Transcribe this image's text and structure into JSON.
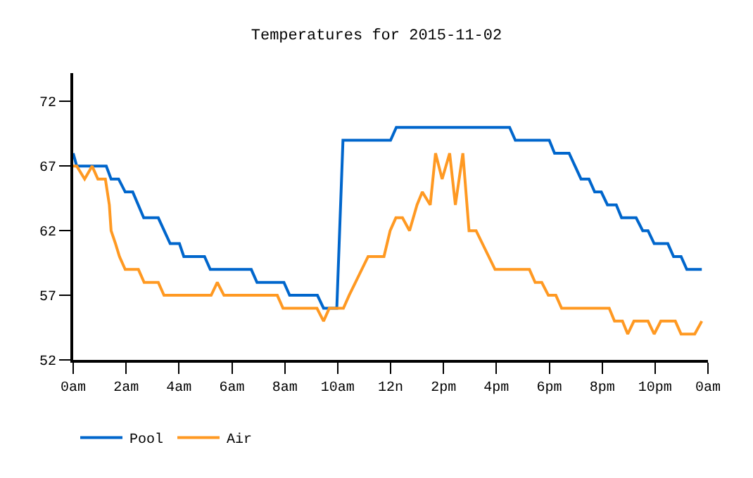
{
  "chart_data": {
    "type": "line",
    "title": "Temperatures for 2015-11-02",
    "xlim": [
      "2015-11-02T00:00",
      "2015-11-03T00:00"
    ],
    "xticks": [
      {
        "value": "2015-11-02T00:00",
        "label": "0am"
      },
      {
        "value": "2015-11-02T02:00",
        "label": "2am"
      },
      {
        "value": "2015-11-02T04:00",
        "label": "4am"
      },
      {
        "value": "2015-11-02T06:00",
        "label": "6am"
      },
      {
        "value": "2015-11-02T08:00",
        "label": "8am"
      },
      {
        "value": "2015-11-02T10:00",
        "label": "10am"
      },
      {
        "value": "2015-11-02T12:00",
        "label": "12n"
      },
      {
        "value": "2015-11-02T14:00",
        "label": "2pm"
      },
      {
        "value": "2015-11-02T16:00",
        "label": "4pm"
      },
      {
        "value": "2015-11-02T18:00",
        "label": "6pm"
      },
      {
        "value": "2015-11-02T20:00",
        "label": "8pm"
      },
      {
        "value": "2015-11-02T22:00",
        "label": "10pm"
      },
      {
        "value": "2015-11-03T00:00",
        "label": "0am"
      }
    ],
    "ylim": [
      52,
      74.2
    ],
    "yticks": [
      52,
      57,
      62,
      67,
      72
    ],
    "grid": false,
    "legend": "bottom",
    "marker": "none",
    "line_style": "solid",
    "series": [
      {
        "name": "Pool",
        "color": "#0066cc",
        "x": [
          "2015-11-02T00:00",
          "2015-11-02T00:08",
          "2015-11-02T01:15",
          "2015-11-02T01:26",
          "2015-11-02T01:43",
          "2015-11-02T01:58",
          "2015-11-02T02:15",
          "2015-11-02T02:40",
          "2015-11-02T03:13",
          "2015-11-02T03:40",
          "2015-11-02T04:01",
          "2015-11-02T04:11",
          "2015-11-02T04:58",
          "2015-11-02T05:11",
          "2015-11-02T06:44",
          "2015-11-02T06:57",
          "2015-11-02T07:58",
          "2015-11-02T08:11",
          "2015-11-02T09:14",
          "2015-11-02T09:28",
          "2015-11-02T09:58",
          "2015-11-02T10:12",
          "2015-11-02T12:00",
          "2015-11-02T12:13",
          "2015-11-02T16:30",
          "2015-11-02T16:43",
          "2015-11-02T18:00",
          "2015-11-02T18:12",
          "2015-11-02T18:45",
          "2015-11-02T19:12",
          "2015-11-02T19:30",
          "2015-11-02T19:43",
          "2015-11-02T19:58",
          "2015-11-02T20:12",
          "2015-11-02T20:32",
          "2015-11-02T20:44",
          "2015-11-02T21:17",
          "2015-11-02T21:32",
          "2015-11-02T21:44",
          "2015-11-02T21:58",
          "2015-11-02T22:29",
          "2015-11-02T22:42",
          "2015-11-02T22:59",
          "2015-11-02T23:12",
          "2015-11-02T23:46"
        ],
        "values": [
          68,
          67,
          67,
          66,
          66,
          65,
          65,
          63,
          63,
          61,
          61,
          60,
          60,
          59,
          59,
          58,
          58,
          57,
          57,
          56,
          56,
          69,
          69,
          70,
          70,
          69,
          69,
          68,
          68,
          66,
          66,
          65,
          65,
          64,
          64,
          63,
          63,
          62,
          62,
          61,
          61,
          60,
          60,
          59,
          59
        ]
      },
      {
        "name": "Air",
        "color": "#ff9922",
        "x": [
          "2015-11-02T00:00",
          "2015-11-02T00:08",
          "2015-11-02T00:26",
          "2015-11-02T00:43",
          "2015-11-02T00:56",
          "2015-11-02T01:13",
          "2015-11-02T01:22",
          "2015-11-02T01:26",
          "2015-11-02T01:36",
          "2015-11-02T01:45",
          "2015-11-02T01:58",
          "2015-11-02T02:28",
          "2015-11-02T02:41",
          "2015-11-02T03:13",
          "2015-11-02T03:26",
          "2015-11-02T05:13",
          "2015-11-02T05:27",
          "2015-11-02T05:42",
          "2015-11-02T07:43",
          "2015-11-02T07:56",
          "2015-11-02T09:13",
          "2015-11-02T09:28",
          "2015-11-02T09:41",
          "2015-11-02T10:13",
          "2015-11-02T10:26",
          "2015-11-02T11:09",
          "2015-11-02T11:45",
          "2015-11-02T11:59",
          "2015-11-02T12:12",
          "2015-11-02T12:27",
          "2015-11-02T12:43",
          "2015-11-02T13:00",
          "2015-11-02T13:12",
          "2015-11-02T13:30",
          "2015-11-02T13:42",
          "2015-11-02T13:57",
          "2015-11-02T14:14",
          "2015-11-02T14:27",
          "2015-11-02T14:44",
          "2015-11-02T14:58",
          "2015-11-02T15:14",
          "2015-11-02T15:57",
          "2015-11-02T17:15",
          "2015-11-02T17:28",
          "2015-11-02T17:43",
          "2015-11-02T17:58",
          "2015-11-02T18:15",
          "2015-11-02T18:28",
          "2015-11-02T20:16",
          "2015-11-02T20:28",
          "2015-11-02T20:46",
          "2015-11-02T20:58",
          "2015-11-02T21:12",
          "2015-11-02T21:44",
          "2015-11-02T21:58",
          "2015-11-02T22:13",
          "2015-11-02T22:46",
          "2015-11-02T22:59",
          "2015-11-02T23:30",
          "2015-11-02T23:46"
        ],
        "values": [
          67,
          67,
          66,
          67,
          66,
          66,
          64,
          62,
          61,
          60,
          59,
          59,
          58,
          58,
          57,
          57,
          58,
          57,
          57,
          56,
          56,
          55,
          56,
          56,
          57,
          60,
          60,
          62,
          63,
          63,
          62,
          64,
          65,
          64,
          68,
          66,
          68,
          64,
          68,
          62,
          62,
          59,
          59,
          58,
          58,
          57,
          57,
          56,
          56,
          55,
          55,
          54,
          55,
          55,
          54,
          55,
          55,
          54,
          54,
          55
        ]
      }
    ]
  }
}
